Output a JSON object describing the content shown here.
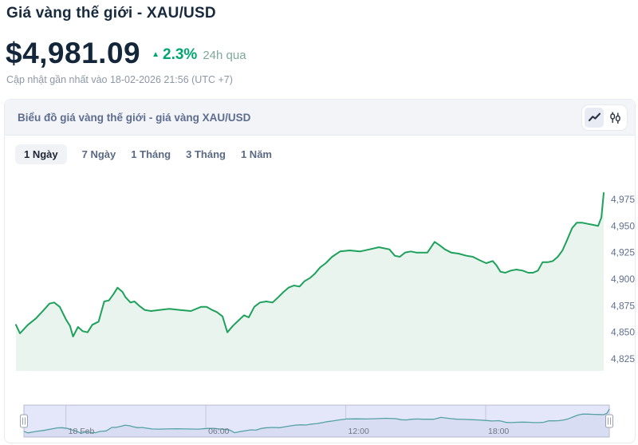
{
  "page": {
    "title": "Giá vàng thế giới - XAU/USD",
    "price": "$4,981.09",
    "change": "2.3%",
    "change_direction": "up",
    "change_arrow_icon": "triangle-up",
    "change_period": "24h qua",
    "last_updated": "Cập nhật gần nhất vào 18-02-2026 21:56 (UTC +7)"
  },
  "card": {
    "header_title": "Biểu đồ giá vàng thế giới - giá vàng XAU/USD",
    "toggle": {
      "line_icon": "line-chart-icon",
      "candle_icon": "candlestick-chart-icon",
      "selected": "line"
    },
    "range_tabs": [
      {
        "label": "1 Ngày",
        "active": true
      },
      {
        "label": "7 Ngày",
        "active": false
      },
      {
        "label": "1 Tháng",
        "active": false
      },
      {
        "label": "3 Tháng",
        "active": false
      },
      {
        "label": "1 Năm",
        "active": false
      }
    ]
  },
  "colors": {
    "accent_green": "#00a770",
    "muted_green": "#7ea89a",
    "line": "#1da15b",
    "area_fill": "#e9f4ee",
    "nav_band": "#e4e7fa",
    "nav_fill": "#d9ddf4",
    "nav_line": "#53a2a4",
    "nav_border": "#b4b8cd",
    "nav_grid": "#c6c9de",
    "y_label": "#60708f",
    "x_label": "#6e7684"
  },
  "chart_data": {
    "type": "area",
    "title": "Giá vàng thế giới - giá vàng XAU/USD",
    "series_name": "XAU/USD",
    "grid": false,
    "legend": false,
    "navigator": true,
    "x_axis": {
      "unit": "hours since 18 Feb 00:00 (UTC+7)",
      "range": [
        -1.8,
        23.3
      ],
      "ticks": [
        {
          "t": 0,
          "label": "18 Feb"
        },
        {
          "t": 6,
          "label": "06:00"
        },
        {
          "t": 12,
          "label": "12:00"
        },
        {
          "t": 18,
          "label": "18:00"
        }
      ]
    },
    "y_axis": {
      "unit": "USD",
      "range": [
        4814,
        4994
      ],
      "ticks": [
        4975,
        4950,
        4925,
        4900,
        4875,
        4850,
        4825
      ],
      "tick_labels": [
        "4,975",
        "4,950",
        "4,925",
        "4,900",
        "4,875",
        "4,850",
        "4,825"
      ]
    },
    "x_hours": [
      -1.8,
      -1.63,
      -1.29,
      -0.95,
      -0.61,
      -0.37,
      -0.17,
      0.07,
      0.34,
      0.51,
      0.64,
      0.85,
      1.05,
      1.26,
      1.46,
      1.73,
      1.97,
      2.17,
      2.37,
      2.54,
      2.75,
      2.88,
      3.09,
      3.26,
      3.46,
      3.7,
      3.97,
      4.31,
      4.75,
      5.22,
      5.67,
      6.11,
      6.34,
      6.58,
      6.78,
      7.02,
      7.23,
      7.46,
      7.7,
      7.94,
      8.14,
      8.38,
      8.62,
      8.89,
      9.16,
      9.4,
      9.63,
      9.84,
      10.07,
      10.31,
      10.52,
      10.75,
      10.96,
      11.19,
      11.43,
      11.7,
      12.04,
      12.45,
      12.89,
      13.3,
      13.7,
      14.15,
      14.38,
      14.59,
      14.82,
      15.06,
      15.3,
      15.54,
      15.77,
      16.08,
      16.28,
      16.52,
      16.79,
      17.1,
      17.44,
      17.71,
      17.98,
      18.28,
      18.56,
      18.72,
      18.89,
      19.1,
      19.33,
      19.57,
      19.84,
      20.08,
      20.28,
      20.49,
      20.69,
      20.93,
      21.13,
      21.34,
      21.54,
      21.74,
      21.95,
      22.15,
      22.39,
      22.62,
      22.86,
      23.06,
      23.2,
      23.3
    ],
    "values": [
      4857,
      4849,
      4857,
      4863,
      4871,
      4877,
      4878,
      4874,
      4862,
      4856,
      4846,
      4855,
      4851,
      4850,
      4857,
      4860,
      4879,
      4880,
      4886,
      4892,
      4888,
      4883,
      4878,
      4879,
      4875,
      4871,
      4870,
      4871,
      4872,
      4871,
      4870,
      4874,
      4874,
      4871,
      4869,
      4865,
      4850,
      4856,
      4861,
      4866,
      4864,
      4874,
      4878,
      4879,
      4878,
      4883,
      4888,
      4892,
      4894,
      4893,
      4898,
      4901,
      4905,
      4911,
      4915,
      4921,
      4926,
      4927,
      4926,
      4928,
      4930,
      4928,
      4922,
      4921,
      4925,
      4926,
      4925,
      4925,
      4925,
      4935,
      4932,
      4928,
      4925,
      4924,
      4922,
      4921,
      4918,
      4915,
      4917,
      4913,
      4907,
      4906,
      4908,
      4909,
      4908,
      4906,
      4906,
      4908,
      4916,
      4916,
      4917,
      4921,
      4927,
      4937,
      4948,
      4953,
      4953,
      4952,
      4951,
      4950,
      4958,
      4981
    ]
  }
}
